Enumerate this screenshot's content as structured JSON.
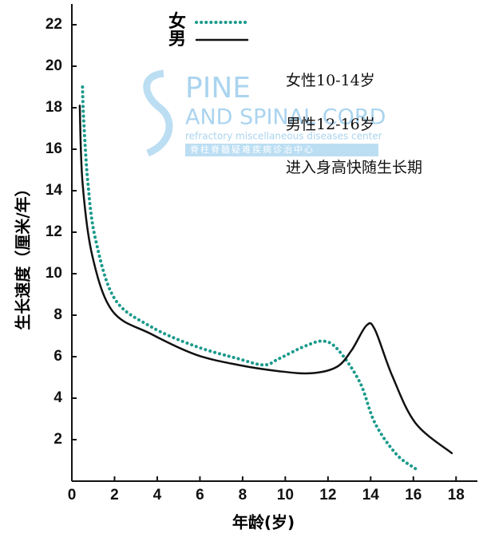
{
  "chart_data": {
    "type": "line",
    "ylabel": "生长速度（厘米/年）",
    "xlabel": "年龄(岁)",
    "xlim": [
      0,
      19
    ],
    "xticks": [
      0,
      2,
      4,
      6,
      8,
      10,
      12,
      14,
      16,
      18
    ],
    "ylim": [
      0,
      23
    ],
    "yticks": [
      2,
      4,
      6,
      8,
      10,
      12,
      14,
      16,
      18,
      20,
      22
    ],
    "series": [
      {
        "name": "女",
        "color": "#1a9a8c",
        "dash": "dotted",
        "x": [
          0.5,
          0.55,
          0.75,
          1.1,
          2,
          3.7,
          5.8,
          7.8,
          9,
          9.7,
          10.9,
          11.8,
          12.5,
          13.5,
          14.2,
          15.2,
          16.1
        ],
        "values": [
          19,
          17.5,
          14.4,
          11.7,
          8.8,
          7.45,
          6.5,
          5.9,
          5.6,
          5.9,
          6.5,
          6.75,
          6.3,
          4.75,
          2.8,
          1.3,
          0.6
        ]
      },
      {
        "name": "男",
        "color": "#111111",
        "dash": "solid",
        "x": [
          0.37,
          0.5,
          0.95,
          1.9,
          3.7,
          5.8,
          7.8,
          9.7,
          11.2,
          12.4,
          13.1,
          13.8,
          14.2,
          15,
          16.1,
          17.8
        ],
        "values": [
          18.1,
          14.4,
          10.9,
          8.2,
          7.1,
          6.1,
          5.6,
          5.3,
          5.2,
          5.5,
          6.3,
          7.5,
          7.3,
          5.1,
          2.8,
          1.35
        ]
      }
    ],
    "annotations": [
      "女性10-14岁",
      "男性12-16岁",
      "进入身高快随生长期"
    ]
  },
  "watermark": [
    "PINE",
    "AND SPINAL CORD",
    "refractory miscellaneous diseases center",
    "脊柱脊髓疑难疾病诊治中心"
  ]
}
